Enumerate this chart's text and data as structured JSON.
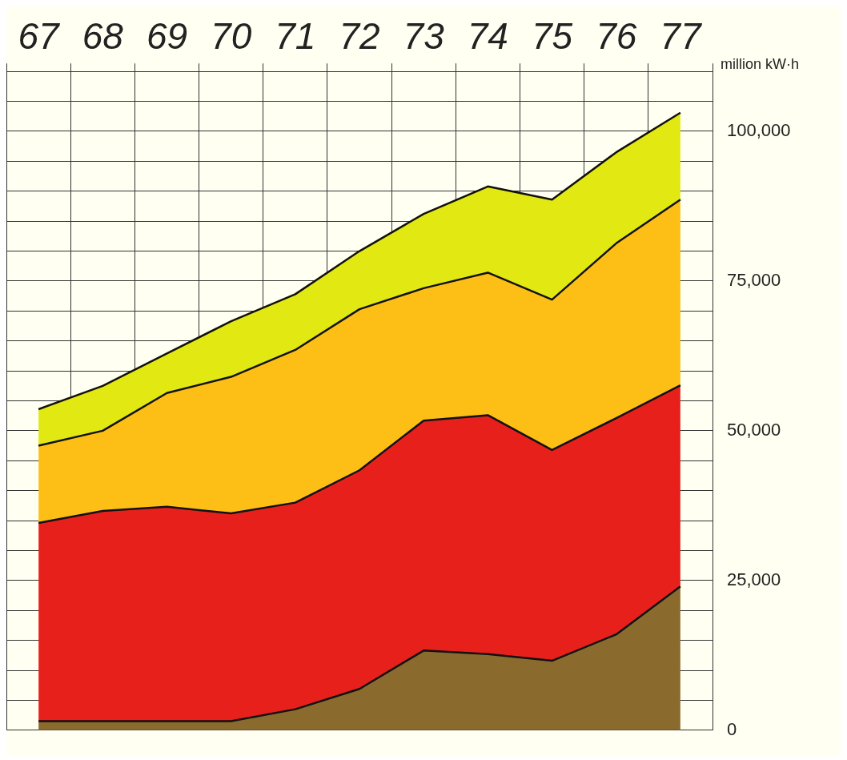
{
  "chart_data": {
    "type": "area",
    "stacked": true,
    "ylabel": "million kW·h",
    "categories": [
      "67",
      "68",
      "69",
      "70",
      "71",
      "72",
      "73",
      "74",
      "75",
      "76",
      "77"
    ],
    "series": [
      {
        "color": "#8b6a2e",
        "values": [
          1500,
          1500,
          1500,
          1500,
          3500,
          6900,
          13300,
          12700,
          11600,
          16000,
          24000
        ]
      },
      {
        "color": "#e8201c",
        "values": [
          33100,
          35100,
          35800,
          34700,
          34500,
          36500,
          38400,
          39900,
          35200,
          36100,
          33600
        ]
      },
      {
        "color": "#fdbf16",
        "values": [
          12900,
          13400,
          19000,
          22800,
          25500,
          26900,
          22100,
          23800,
          25100,
          29200,
          31000
        ]
      },
      {
        "color": "#e2e812",
        "values": [
          6100,
          7500,
          6600,
          9300,
          9300,
          9700,
          12400,
          14400,
          16700,
          15200,
          14500
        ]
      }
    ],
    "ylim": [
      0,
      110000
    ],
    "yticks": [
      0,
      {
        "value": 5000,
        "label": null
      },
      {
        "value": 10000,
        "label": null
      },
      {
        "value": 15000,
        "label": null
      },
      {
        "value": 20000,
        "label": null
      },
      {
        "value": 25000,
        "label": "25,000"
      },
      {
        "value": 30000,
        "label": null
      },
      {
        "value": 35000,
        "label": null
      },
      {
        "value": 40000,
        "label": null
      },
      {
        "value": 45000,
        "label": null
      },
      {
        "value": 50000,
        "label": "50,000"
      },
      {
        "value": 55000,
        "label": null
      },
      {
        "value": 60000,
        "label": null
      },
      {
        "value": 65000,
        "label": null
      },
      {
        "value": 70000,
        "label": null
      },
      {
        "value": 75000,
        "label": "75,000"
      },
      {
        "value": 80000,
        "label": null
      },
      {
        "value": 85000,
        "label": null
      },
      {
        "value": 90000,
        "label": null
      },
      {
        "value": 95000,
        "label": null
      },
      {
        "value": 100000,
        "label": "100,000"
      },
      {
        "value": 105000,
        "label": null
      }
    ],
    "grid": true
  }
}
